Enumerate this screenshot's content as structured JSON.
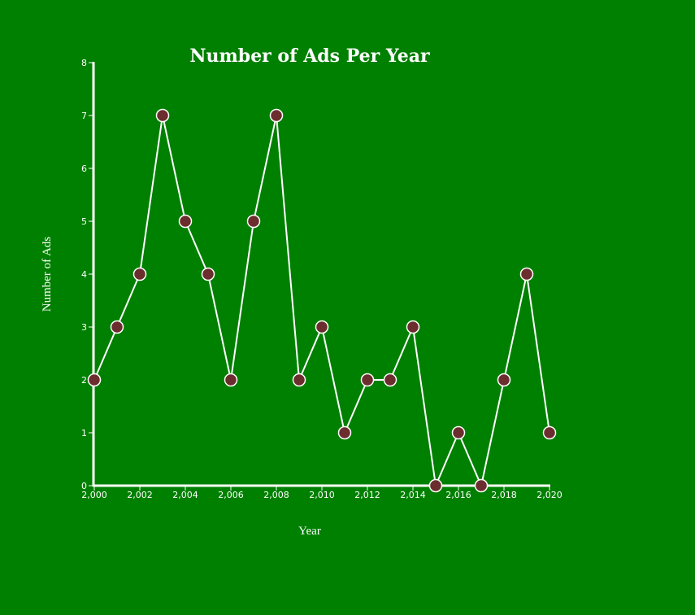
{
  "colors": {
    "background": "#008000",
    "line": "#ffffff",
    "marker_fill": "#6b2d2d",
    "text": "#ffffff"
  },
  "chart_data": {
    "type": "line",
    "title": "Number of Ads Per Year",
    "xlabel": "Year",
    "ylabel": "Number of Ads",
    "x": [
      2000,
      2001,
      2002,
      2003,
      2004,
      2005,
      2006,
      2007,
      2008,
      2009,
      2010,
      2011,
      2012,
      2013,
      2014,
      2015,
      2016,
      2017,
      2018,
      2019,
      2020
    ],
    "values": [
      2,
      3,
      4,
      7,
      5,
      4,
      2,
      5,
      7,
      2,
      3,
      1,
      2,
      2,
      3,
      0,
      1,
      0,
      2,
      4,
      1
    ],
    "xlim": [
      2000,
      2020
    ],
    "ylim": [
      0,
      8
    ],
    "x_ticks": [
      "2,000",
      "2,002",
      "2,004",
      "2,006",
      "2,008",
      "2,010",
      "2,012",
      "2,014",
      "2,016",
      "2,018",
      "2,020"
    ],
    "y_ticks": [
      "0",
      "1",
      "2",
      "3",
      "4",
      "5",
      "6",
      "7",
      "8"
    ],
    "grid": false,
    "legend": "none",
    "markers": "circle"
  }
}
